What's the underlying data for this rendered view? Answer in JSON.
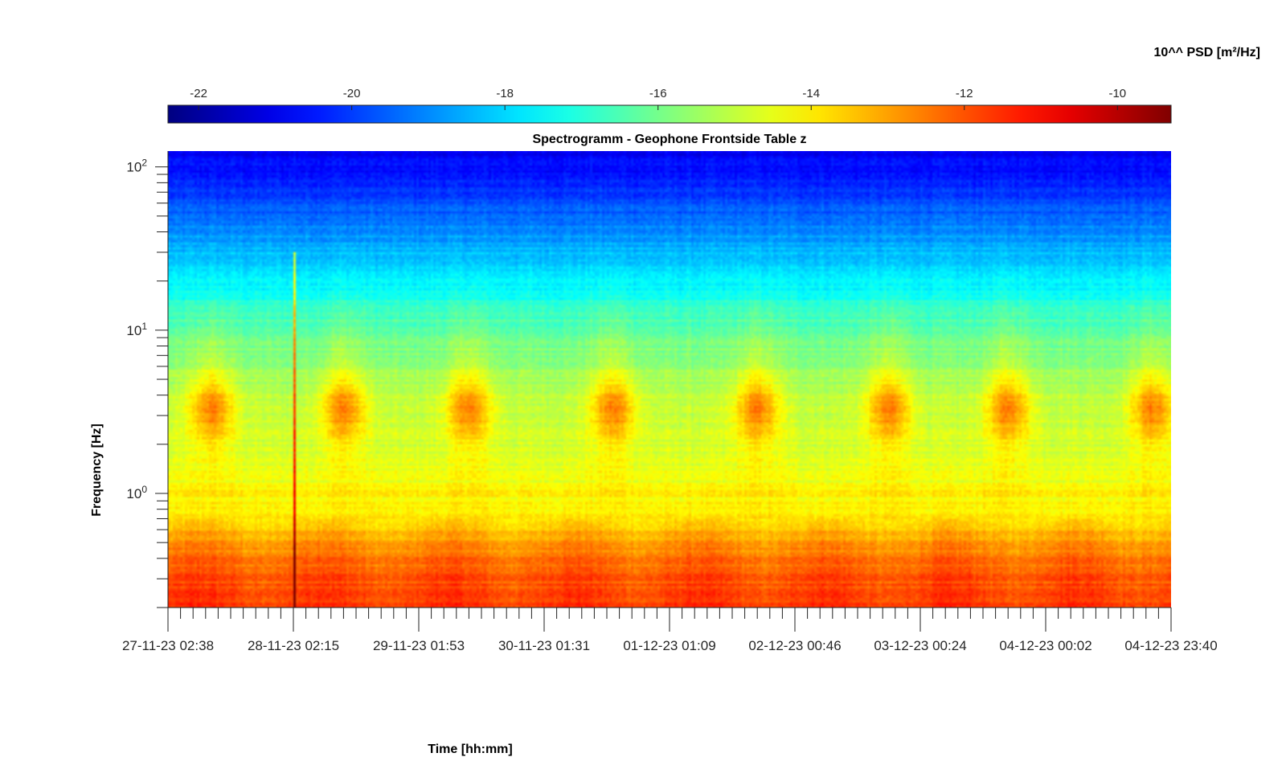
{
  "chart_data": {
    "type": "heatmap",
    "title": "Spectrogramm - Geophone Frontside Table z",
    "xlabel": "Time [hh:mm]",
    "ylabel": "Frequency [Hz]",
    "x_ticks": [
      "27-11-23 02:38",
      "28-11-23 02:15",
      "29-11-23 01:53",
      "30-11-23 01:31",
      "01-12-23 01:09",
      "02-12-23 00:46",
      "03-12-23 00:24",
      "04-12-23 00:02",
      "04-12-23 23:40"
    ],
    "y_scale": "log",
    "ylim": [
      0.2,
      125
    ],
    "y_ticks": [
      {
        "base": "10",
        "exp": "0",
        "value": 1
      },
      {
        "base": "10",
        "exp": "1",
        "value": 10
      },
      {
        "base": "10",
        "exp": "2",
        "value": 100
      }
    ],
    "colorbar": {
      "label": "10^^ PSD [m²/Hz]",
      "colormap": "jet",
      "range": [
        -22.4,
        -9.3
      ],
      "ticks": [
        "-22",
        "-20",
        "-18",
        "-16",
        "-14",
        "-12",
        "-10"
      ],
      "tick_values": [
        -22,
        -20,
        -18,
        -16,
        -14,
        -12,
        -10
      ]
    },
    "psd_profile": {
      "frequency_hz": [
        0.2,
        0.3,
        0.45,
        0.6,
        0.75,
        1.0,
        2.0,
        3.3,
        5,
        8,
        12,
        20,
        40,
        70,
        125
      ],
      "log10_psd_baseline": [
        -11.7,
        -12.0,
        -12.6,
        -13.4,
        -14.0,
        -14.3,
        -14.8,
        -14.9,
        -15.4,
        -15.9,
        -16.6,
        -17.7,
        -18.9,
        -20.2,
        -20.9
      ]
    },
    "daily_activity_bursts": [
      {
        "day": 0.35,
        "frequency_hz": 3.3
      },
      {
        "day": 1.4,
        "frequency_hz": 3.3
      },
      {
        "day": 2.4,
        "frequency_hz": 3.3
      },
      {
        "day": 3.55,
        "frequency_hz": 3.3
      },
      {
        "day": 4.7,
        "frequency_hz": 3.3
      },
      {
        "day": 5.75,
        "frequency_hz": 3.3
      },
      {
        "day": 6.7,
        "frequency_hz": 3.3
      },
      {
        "day": 7.85,
        "frequency_hz": 3.3
      }
    ],
    "transient_event": {
      "day": 1.01,
      "frequency_range_hz": [
        0.2,
        30
      ]
    },
    "grid": false
  }
}
